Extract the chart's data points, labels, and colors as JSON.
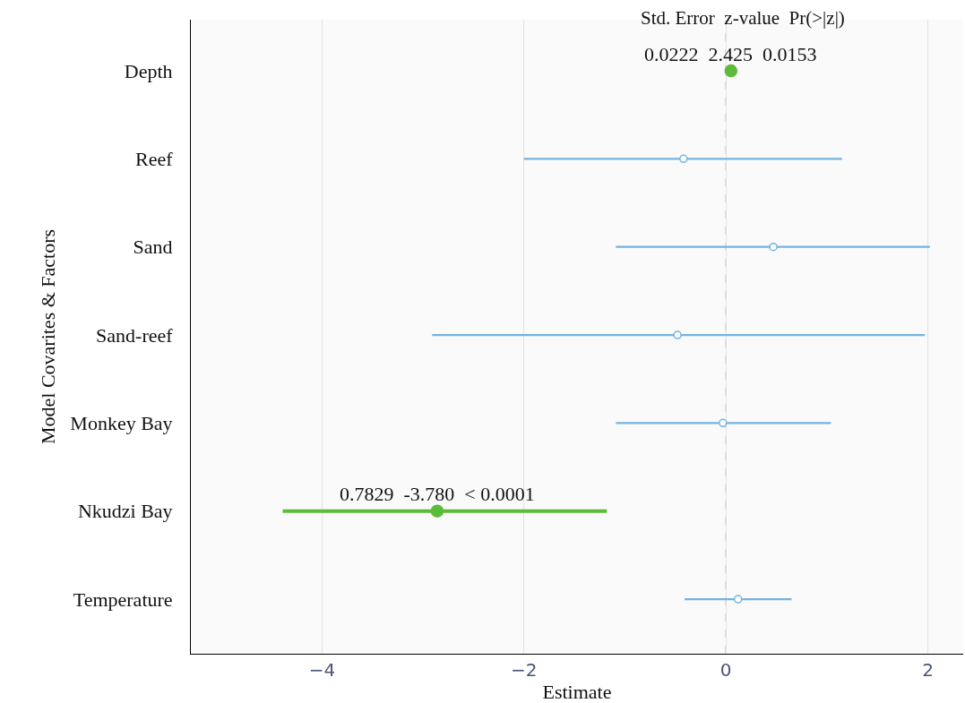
{
  "chart_data": {
    "type": "scatter",
    "xlabel": "Estimate",
    "ylabel": "Model Covarites & Factors",
    "categories": [
      "Depth",
      "Reef",
      "Sand",
      "Sand-reef",
      "Monkey Bay",
      "Nkudzi Bay",
      "Temperature"
    ],
    "series": [
      {
        "color": "#74b3e0",
        "values": [
          null,
          -0.42,
          0.47,
          -0.48,
          -0.03,
          null,
          0.12
        ],
        "errors": [
          null,
          [
            -2.0,
            1.15
          ],
          [
            -1.09,
            2.02
          ],
          [
            -2.91,
            1.97
          ],
          [
            -1.09,
            1.04
          ],
          null,
          [
            -0.41,
            0.65
          ]
        ]
      },
      {
        "color": "#5dbb3a",
        "values": [
          0.05,
          null,
          null,
          null,
          null,
          -2.86,
          null
        ],
        "errors": [
          null,
          null,
          null,
          null,
          null,
          [
            -4.39,
            -1.18
          ],
          null
        ]
      }
    ],
    "xlim": [
      -5.3,
      2.35
    ],
    "xticks": [
      {
        "value": -4,
        "label": "−4"
      },
      {
        "value": -2,
        "label": "−2"
      },
      {
        "value": 0,
        "label": "0"
      },
      {
        "value": 2,
        "label": "2"
      }
    ],
    "orientation": "horizontal",
    "grid": "x",
    "marker": "circle",
    "ref_lines": [
      {
        "axis": "x",
        "value": 0,
        "color": "#999999",
        "line_style": "dashed"
      }
    ],
    "annotations": [
      "Std. Error  z-value  Pr(>|z|)",
      {
        "text": "0.0222  2.425  0.0153",
        "x": 0.05,
        "y": "Depth"
      },
      {
        "text": "0.7829  -3.780  < 0.0001",
        "x": -2.86,
        "y": "Nkudzi Bay"
      }
    ]
  }
}
